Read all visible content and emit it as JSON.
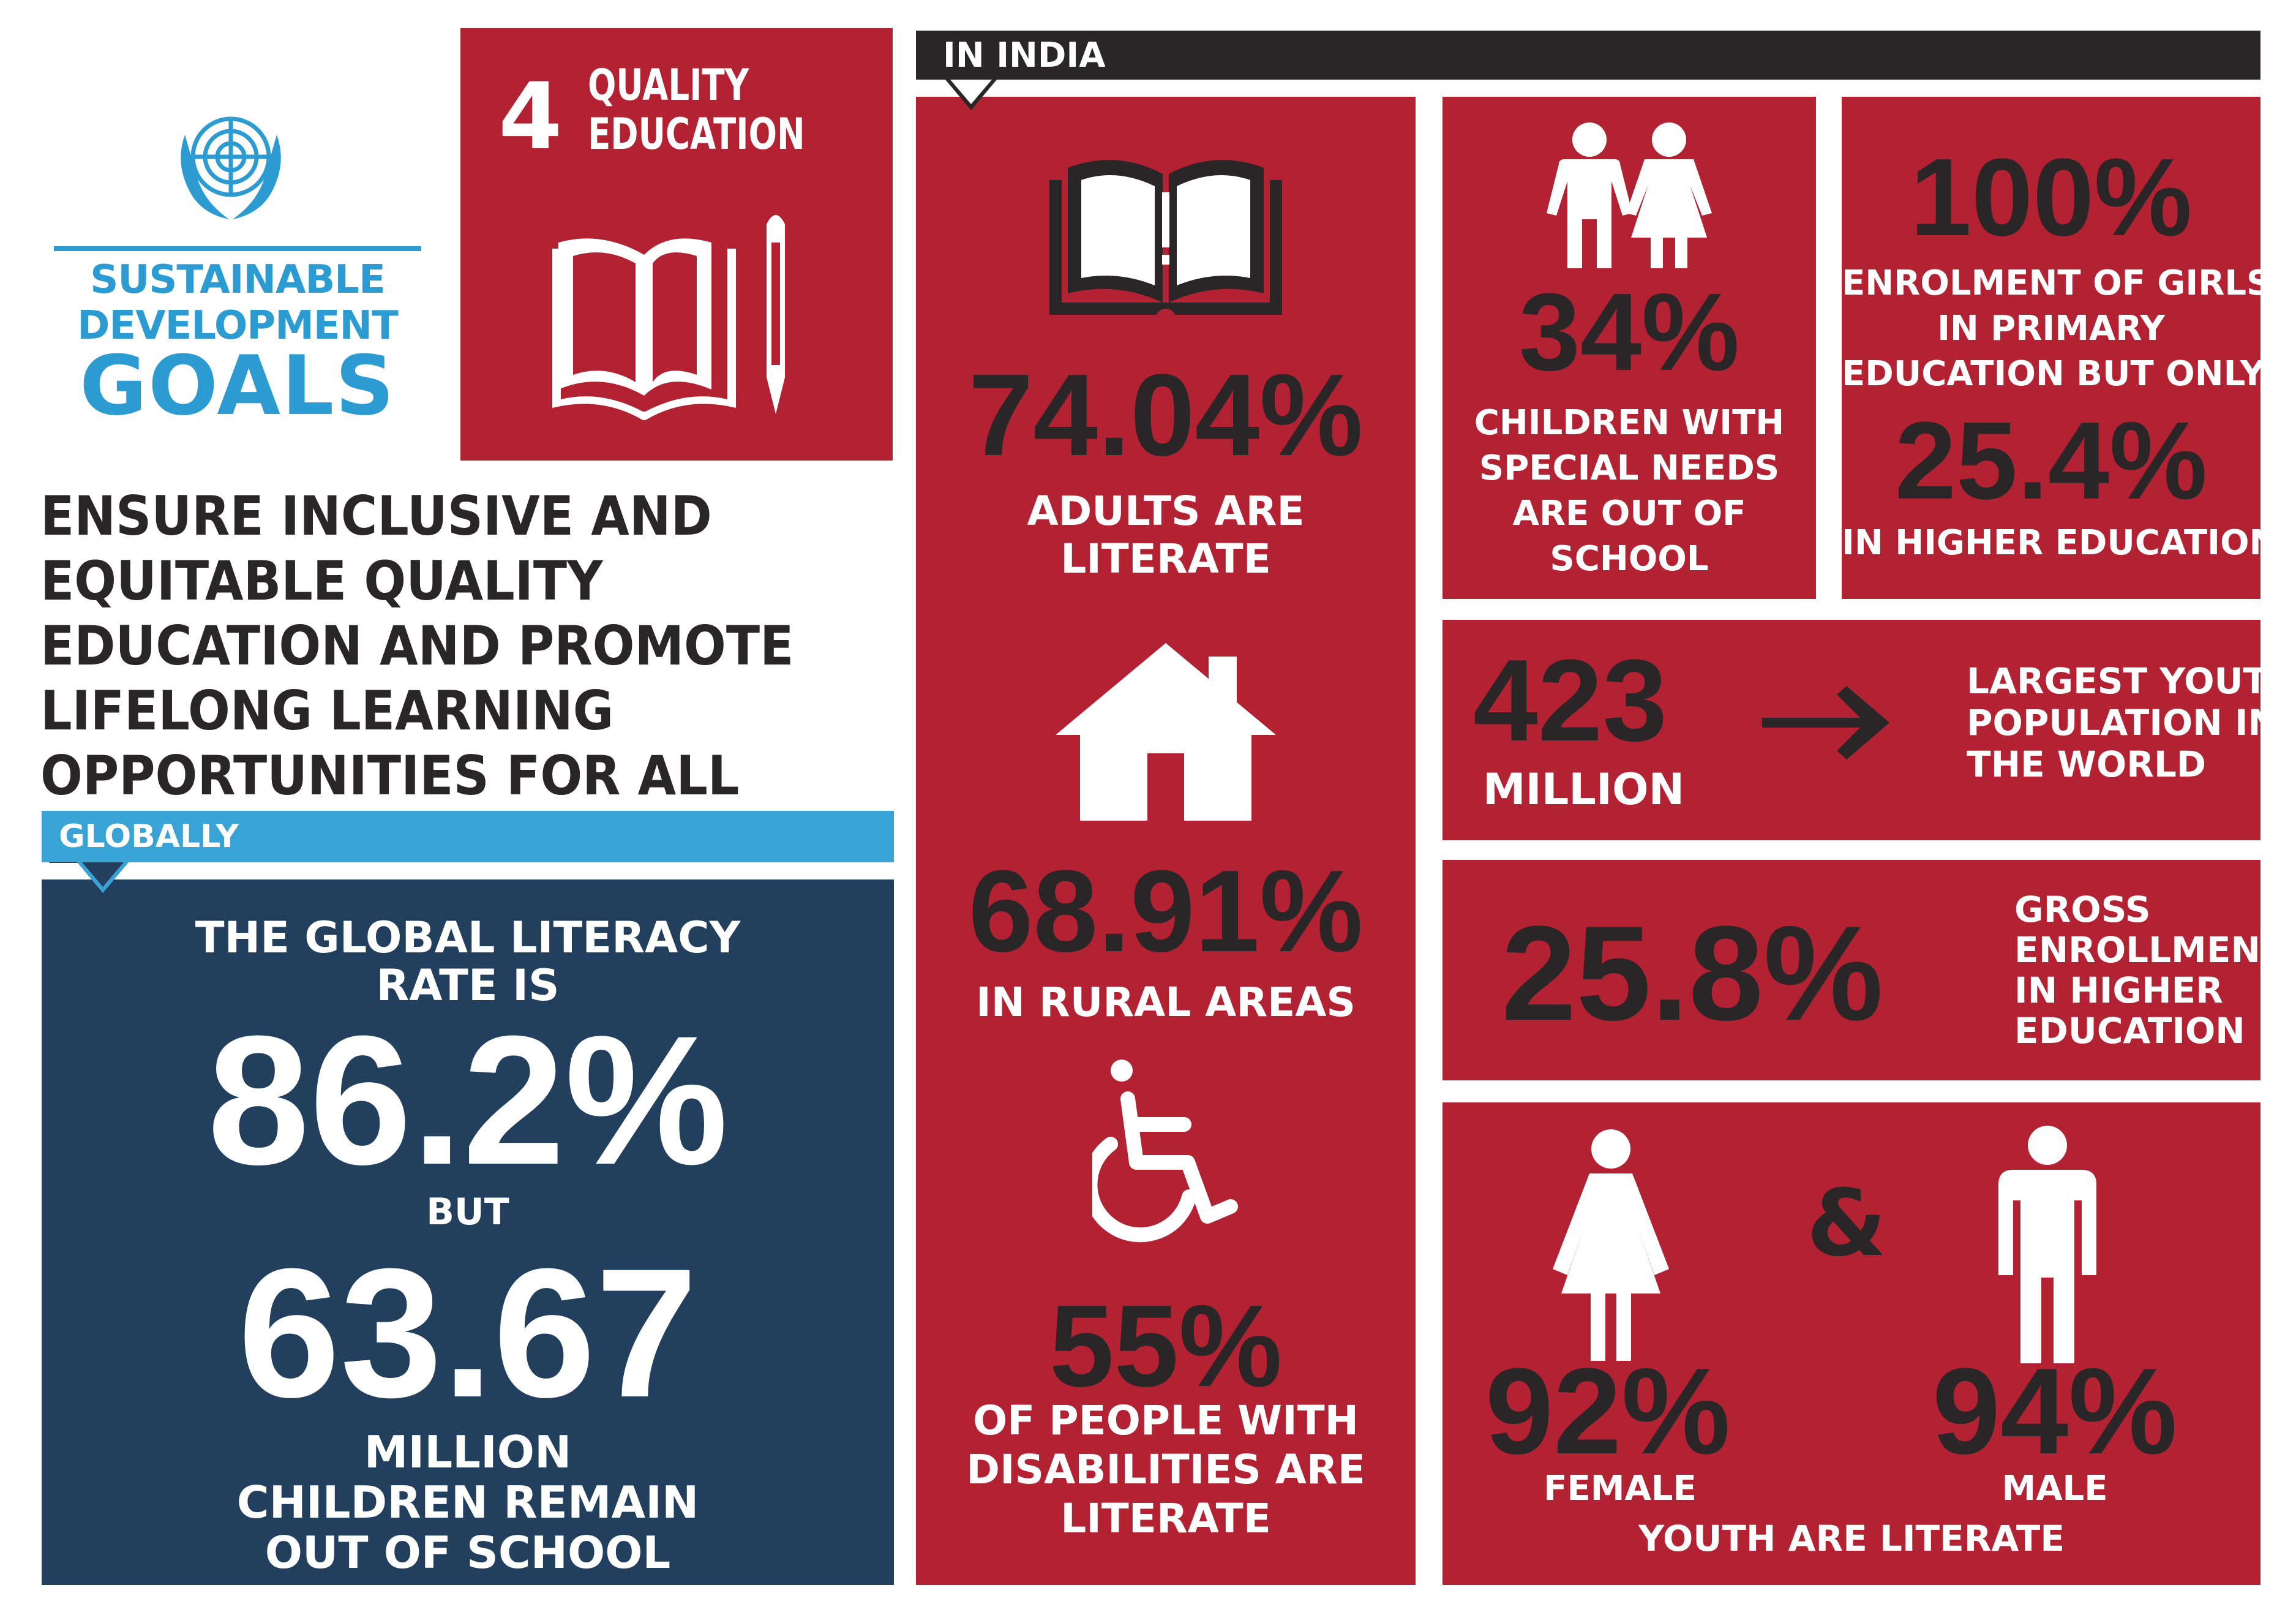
{
  "colors": {
    "red": "#b22233",
    "dark": "#2a2627",
    "navy": "#223f5e",
    "blue": "#2b9bd1",
    "lightblue": "#3aa3d5"
  },
  "logo": {
    "icon": "un-emblem-icon",
    "line1": "SUSTAINABLE",
    "line2": "DEVELOPMENT",
    "line3": "GOALS"
  },
  "goal": {
    "number": "4",
    "line1": "QUALITY",
    "line2": "EDUCATION",
    "icon": "book-and-pencil-icon"
  },
  "headline": {
    "lines": [
      "ENSURE INCLUSIVE AND",
      "EQUITABLE QUALITY",
      "EDUCATION AND PROMOTE",
      "LIFELONG LEARNING",
      "OPPORTUNITIES FOR ALL"
    ],
    "icon": "arrow-down-icon"
  },
  "globally": {
    "label": "GLOBALLY",
    "intro_lines": [
      "THE GLOBAL LITERACY",
      "RATE IS"
    ],
    "rate": "86.2%",
    "but": "BUT",
    "count": "63.67",
    "outro_lines": [
      "MILLION",
      "CHILDREN  REMAIN",
      "OUT OF SCHOOL"
    ]
  },
  "india": {
    "label": "IN INDIA",
    "adults": {
      "icon": "open-book-icon",
      "value": "74.04%",
      "lines": [
        "ADULTS ARE",
        "LITERATE"
      ]
    },
    "rural": {
      "icon": "house-icon",
      "value": "68.91%",
      "lines": [
        "IN RURAL AREAS"
      ]
    },
    "disabilities": {
      "icon": "wheelchair-icon",
      "value": "55%",
      "lines": [
        "OF PEOPLE WITH",
        "DISABILITIES ARE",
        "LITERATE"
      ]
    },
    "special_needs": {
      "icon": "children-icon",
      "value": "34%",
      "lines": [
        "CHILDREN WITH",
        "SPECIAL NEEDS",
        "ARE OUT OF",
        "SCHOOL"
      ]
    },
    "girls": {
      "value1": "100%",
      "lines1": [
        "ENROLMENT OF GIRLS",
        "IN PRIMARY",
        "EDUCATION  BUT ONLY"
      ],
      "value2": "25.4%",
      "lines2": [
        "IN HIGHER EDUCATION"
      ]
    },
    "youth_pop": {
      "value": "423",
      "unit": "MILLION",
      "icon": "arrow-right-icon",
      "lines": [
        "LARGEST YOUTH",
        "POPULATION IN",
        "THE WORLD"
      ]
    },
    "gross": {
      "value": "25.8%",
      "lines": [
        "GROSS",
        "ENROLLMENT",
        "IN HIGHER",
        "EDUCATION"
      ]
    },
    "youth_lit": {
      "female_icon": "female-icon",
      "male_icon": "male-icon",
      "amp": "&",
      "female_value": "92%",
      "female_label": "FEMALE",
      "male_value": "94%",
      "male_label": "MALE",
      "caption": "YOUTH ARE LITERATE"
    }
  }
}
